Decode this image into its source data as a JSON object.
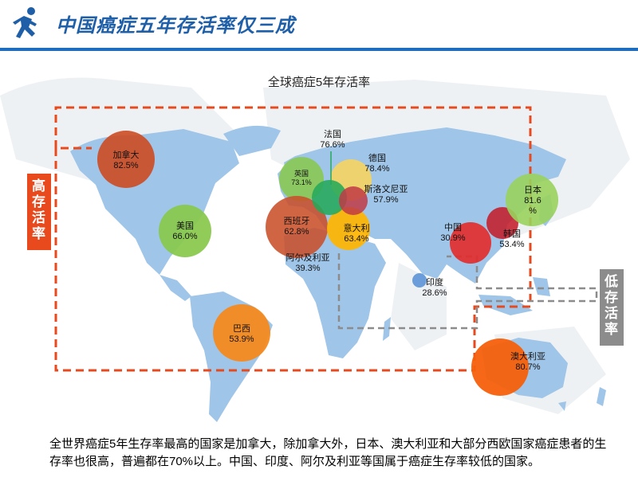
{
  "header": {
    "title": "中国癌症五年存活率仅三成",
    "icon": "running-person-icon"
  },
  "map": {
    "title": "全球癌症5年存活率",
    "high_label": "高存活率",
    "low_label": "低存活率"
  },
  "countries": [
    {
      "name": "加拿大",
      "rate": "82.5%"
    },
    {
      "name": "美国",
      "rate": "66.0%"
    },
    {
      "name": "巴西",
      "rate": "53.9%"
    },
    {
      "name": "英国",
      "rate": "73.1%"
    },
    {
      "name": "法国",
      "rate": "76.6%"
    },
    {
      "name": "德国",
      "rate": "78.4%"
    },
    {
      "name": "斯洛文尼亚",
      "rate": "57.9%"
    },
    {
      "name": "西班牙",
      "rate": "62.8%"
    },
    {
      "name": "意大利",
      "rate": "63.4%"
    },
    {
      "name": "阿尔及利亚",
      "rate": "39.3%"
    },
    {
      "name": "中国",
      "rate": "30.9%"
    },
    {
      "name": "韩国",
      "rate": "53.4%"
    },
    {
      "name": "日本",
      "rate": "81.6 %"
    },
    {
      "name": "印度",
      "rate": "28.6%"
    },
    {
      "name": "澳大利亚",
      "rate": "80.7%"
    }
  ],
  "colors": {
    "title_blue": "#1f5fa8",
    "high_box": "#e84a1d",
    "low_box": "#8c8c8c",
    "land": "#9fc5e8"
  },
  "caption": "全世界癌症5年生存率最高的国家是加拿大，除加拿大外，日本、澳大利亚和大部分西欧国家癌症患者的生存率也很高，普遍都在70%以上。中国、印度、阿尔及利亚等国属于癌症生存率较低的国家。"
}
